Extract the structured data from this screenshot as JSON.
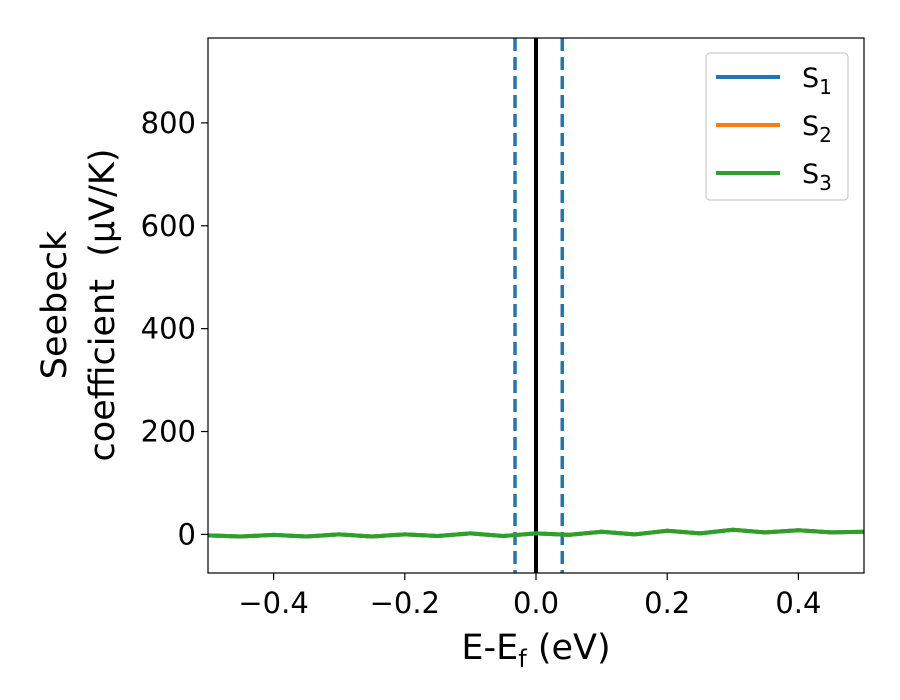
{
  "chart_data": {
    "type": "line",
    "xlabel": {
      "main": "E-E",
      "sub": "f",
      "tail": " (eV)"
    },
    "ylabel": {
      "line1": "Seebeck",
      "line2": "coefficient  (μV/K)"
    },
    "xlim": [
      -0.5,
      0.5
    ],
    "ylim": [
      -75,
      965
    ],
    "xticks": [
      -0.4,
      -0.2,
      0.0,
      0.2,
      0.4
    ],
    "xtick_labels": [
      "−0.4",
      "−0.2",
      "0.0",
      "0.2",
      "0.4"
    ],
    "yticks": [
      0,
      200,
      400,
      600,
      800
    ],
    "ytick_labels": [
      "0",
      "200",
      "400",
      "600",
      "800"
    ],
    "grid": false,
    "legend_position": "top-right",
    "vlines": [
      {
        "x": 0.0,
        "style": "solid",
        "color": "#000000"
      },
      {
        "x": -0.032,
        "style": "dashed",
        "color": "#1f77b4"
      },
      {
        "x": 0.04,
        "style": "dashed",
        "color": "#1f77b4"
      }
    ],
    "x": [
      -0.5,
      -0.45,
      -0.4,
      -0.35,
      -0.3,
      -0.25,
      -0.2,
      -0.15,
      -0.1,
      -0.05,
      0.0,
      0.05,
      0.1,
      0.15,
      0.2,
      0.25,
      0.3,
      0.35,
      0.4,
      0.45,
      0.5
    ],
    "series": [
      {
        "name": "S",
        "sub": "1",
        "color": "#1f77b4",
        "values": [
          -2,
          -4,
          -1,
          -4,
          0,
          -4,
          0,
          -3,
          2,
          -3,
          2,
          -1,
          5,
          0,
          7,
          2,
          9,
          4,
          8,
          4,
          5
        ]
      },
      {
        "name": "S",
        "sub": "2",
        "color": "#ff7f0e",
        "values": [
          -2,
          -4,
          -1,
          -4,
          0,
          -4,
          0,
          -3,
          2,
          -3,
          2,
          -1,
          5,
          0,
          7,
          2,
          9,
          4,
          8,
          4,
          5
        ]
      },
      {
        "name": "S",
        "sub": "3",
        "color": "#2ca02c",
        "values": [
          -2,
          -4,
          -1,
          -4,
          0,
          -4,
          0,
          -3,
          2,
          -3,
          2,
          -1,
          5,
          0,
          7,
          2,
          9,
          4,
          8,
          4,
          5
        ]
      }
    ]
  }
}
